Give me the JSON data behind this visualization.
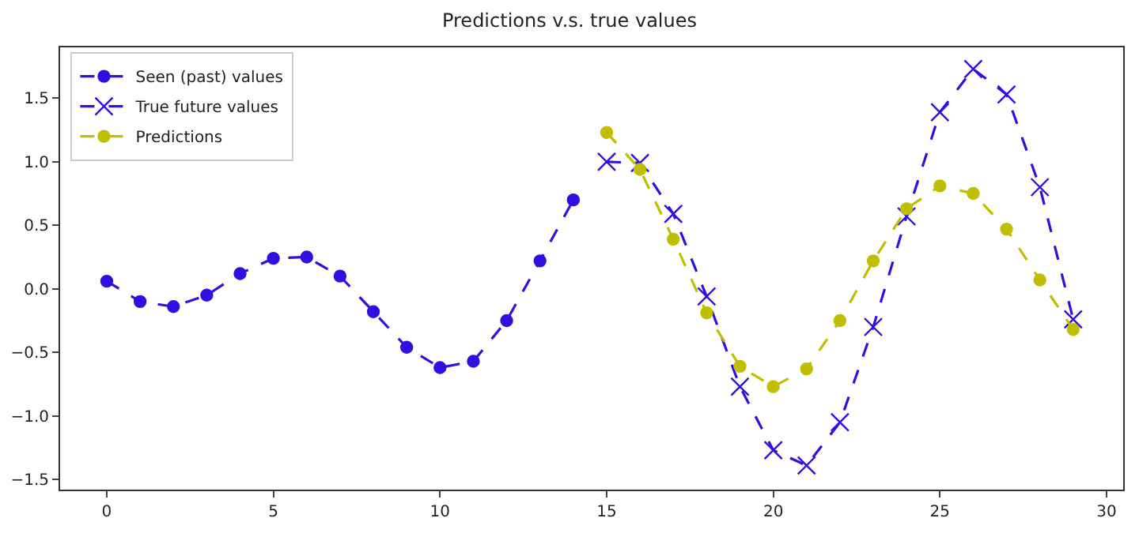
{
  "chart_data": {
    "type": "line",
    "title": "Predictions v.s. true values",
    "xlim": [
      -1.4,
      30.5
    ],
    "xticks": [
      0,
      5,
      10,
      15,
      20,
      25,
      30
    ],
    "ylim": [
      -1.58,
      1.9
    ],
    "yticks": [
      {
        "value": -1.5,
        "label": "−1.5"
      },
      {
        "value": -1,
        "label": "−1.0"
      },
      {
        "value": -0.5,
        "label": "−0.5"
      },
      {
        "value": 0,
        "label": "0.0"
      },
      {
        "value": 0.5,
        "label": "0.5"
      },
      {
        "value": 1,
        "label": "1.0"
      },
      {
        "value": 1.5,
        "label": "1.5"
      }
    ],
    "grid": false,
    "legend": "top left",
    "line_style": "dashed",
    "series": [
      {
        "name": "Seen (past) values",
        "color": "#3010e0",
        "marker": "circle",
        "x": [
          0,
          1,
          2,
          3,
          4,
          5,
          6,
          7,
          8,
          9,
          10,
          11,
          12,
          13,
          14
        ],
        "values": [
          0.06,
          -0.1,
          -0.14,
          -0.05,
          0.12,
          0.24,
          0.25,
          0.1,
          -0.18,
          -0.46,
          -0.62,
          -0.57,
          -0.25,
          0.22,
          0.7
        ]
      },
      {
        "name": "True future values",
        "color": "#3010e0",
        "marker": "cross",
        "x": [
          15,
          16,
          17,
          18,
          19,
          20,
          21,
          22,
          23,
          24,
          25,
          26,
          27,
          28,
          29
        ],
        "values": [
          1.0,
          0.99,
          0.59,
          -0.06,
          -0.77,
          -1.27,
          -1.39,
          -1.05,
          -0.3,
          0.57,
          1.39,
          1.73,
          1.53,
          0.8,
          -0.24
        ]
      },
      {
        "name": "Predictions",
        "color": "#bfbf00",
        "marker": "circle",
        "x": [
          15,
          16,
          17,
          18,
          19,
          20,
          21,
          22,
          23,
          24,
          25,
          26,
          27,
          28,
          29
        ],
        "values": [
          1.23,
          0.94,
          0.39,
          -0.19,
          -0.61,
          -0.77,
          -0.63,
          -0.25,
          0.22,
          0.63,
          0.81,
          0.75,
          0.47,
          0.07,
          -0.32
        ]
      }
    ]
  }
}
